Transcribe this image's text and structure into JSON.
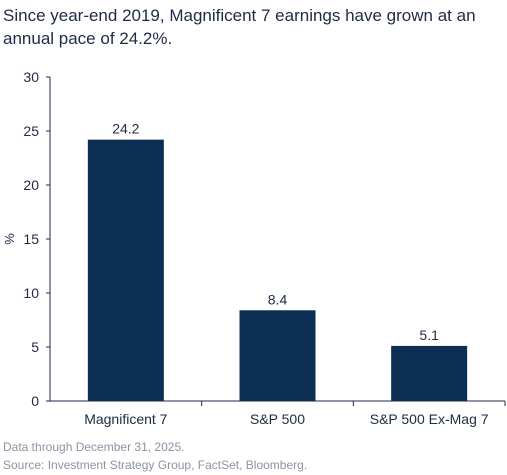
{
  "chart_data": {
    "type": "bar",
    "title": "Since year-end 2019, Magnificent 7 earnings have grown at an annual pace of 24.2%.",
    "categories": [
      "Magnificent 7",
      "S&P 500",
      "S&P 500 Ex-Mag 7"
    ],
    "values": [
      24.2,
      8.4,
      5.1
    ],
    "data_labels": [
      "24.2",
      "8.4",
      "5.1"
    ],
    "xlabel": "",
    "ylabel": "%",
    "ylim": [
      0,
      30
    ],
    "yticks": [
      0,
      5,
      10,
      15,
      20,
      25,
      30
    ],
    "grid": false,
    "legend": "none"
  },
  "footnotes": {
    "note": "Data through December 31, 2025.",
    "source": "Source: Investment Strategy Group, FactSet, Bloomberg."
  },
  "colors": {
    "bar": "#0b2e52",
    "axis": "#1f2a44",
    "title_text": "#1f2a44",
    "footnote_text": "#8a95a3"
  }
}
